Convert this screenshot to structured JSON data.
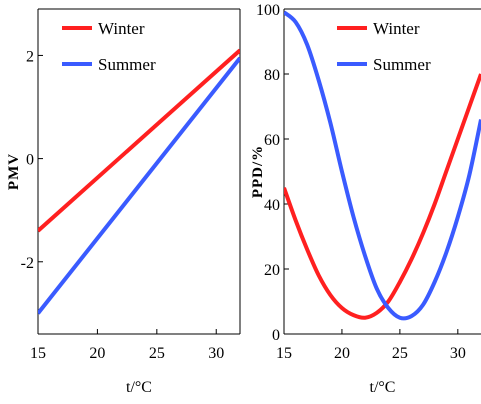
{
  "chart_data": [
    {
      "type": "line",
      "xlabel": "t/°C",
      "ylabel": "PMV",
      "xlim": [
        15,
        32
      ],
      "ylim": [
        -3.4,
        2.9
      ],
      "xticks": [
        "15",
        "20",
        "25",
        "30"
      ],
      "yticks": [
        "-2",
        "0",
        "2"
      ],
      "legend_position": "top-left",
      "series": [
        {
          "name": "Winter",
          "color": "#ff2020",
          "x": [
            15,
            32
          ],
          "y": [
            -1.4,
            2.1
          ]
        },
        {
          "name": "Summer",
          "color": "#3a5bff",
          "x": [
            15,
            32
          ],
          "y": [
            -3.0,
            1.95
          ]
        }
      ]
    },
    {
      "type": "line",
      "xlabel": "t/°C",
      "ylabel": "PPD/%",
      "xlim": [
        15,
        32
      ],
      "ylim": [
        0,
        100
      ],
      "xticks": [
        "15",
        "20",
        "25",
        "30"
      ],
      "yticks": [
        "0",
        "20",
        "40",
        "60",
        "80",
        "100"
      ],
      "legend_position": "top-right",
      "series": [
        {
          "name": "Winter",
          "color": "#ff2020",
          "x": [
            15,
            16,
            17,
            18,
            19,
            20,
            21,
            22,
            23,
            24,
            25,
            26,
            27,
            28,
            29,
            30,
            31,
            32
          ],
          "y": [
            45,
            35,
            26,
            18,
            12,
            8,
            5.8,
            5,
            6.5,
            10,
            16,
            23,
            31,
            40,
            50,
            60,
            70,
            80
          ]
        },
        {
          "name": "Summer",
          "color": "#3a5bff",
          "x": [
            15,
            16,
            17,
            18,
            19,
            20,
            21,
            22,
            23,
            24,
            25,
            26,
            27,
            28,
            29,
            30,
            31,
            32
          ],
          "y": [
            99,
            96,
            89,
            78,
            65,
            50,
            36,
            24,
            14,
            8,
            5,
            5.5,
            9,
            16,
            25,
            36,
            49,
            66
          ]
        }
      ]
    }
  ]
}
